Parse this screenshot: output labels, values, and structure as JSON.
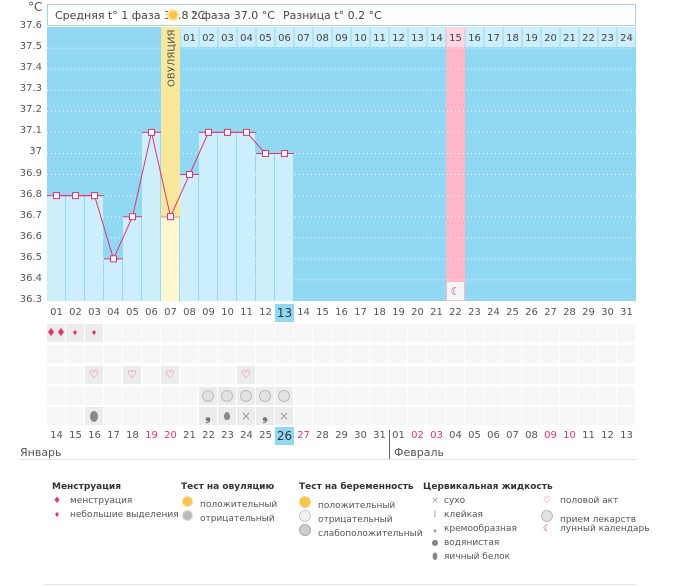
{
  "header": {
    "unit": "°C",
    "phase1_label": "Средняя t° 1 фаза 36.8 °C",
    "phase2_label": "2 фаза 37.0 °C",
    "diff_label": "Разница t° 0.2 °C"
  },
  "chart_data": {
    "type": "line",
    "title": "",
    "xlabel": "",
    "ylabel": "°C",
    "ylim": [
      36.3,
      37.6
    ],
    "yticks": [
      "37.6",
      "37.5",
      "37.4",
      "37.3",
      "37.2",
      "37.1",
      "37",
      "36.9",
      "36.8",
      "36.7",
      "36.6",
      "36.5",
      "36.4",
      "36.3"
    ],
    "grid": true,
    "cycle_days": [
      "01",
      "02",
      "03",
      "04",
      "05",
      "06",
      "07",
      "08",
      "09",
      "10",
      "11",
      "12",
      "13",
      "14",
      "15",
      "16",
      "17",
      "18",
      "19",
      "20",
      "21",
      "22",
      "23",
      "24",
      "25",
      "26",
      "27",
      "28",
      "29",
      "30",
      "31"
    ],
    "dates": [
      "14",
      "15",
      "16",
      "17",
      "18",
      "19",
      "20",
      "21",
      "22",
      "23",
      "24",
      "25",
      "26",
      "27",
      "28",
      "29",
      "30",
      "31",
      "01",
      "02",
      "03",
      "04",
      "05",
      "06",
      "07",
      "08",
      "09",
      "10",
      "11",
      "12",
      "13"
    ],
    "date_red": [
      false,
      false,
      false,
      false,
      false,
      true,
      true,
      false,
      false,
      false,
      false,
      false,
      false,
      true,
      false,
      false,
      false,
      false,
      false,
      true,
      true,
      false,
      false,
      false,
      false,
      false,
      true,
      true,
      false,
      false,
      false
    ],
    "today_index": 12,
    "series": [
      {
        "name": "Базальная температура",
        "values": [
          36.8,
          36.8,
          36.8,
          36.5,
          36.7,
          37.1,
          36.7,
          36.9,
          37.1,
          37.1,
          37.1,
          37.0,
          37.0
        ]
      }
    ],
    "ovulation_index": 6,
    "ovulation_label": "ОВУЛЯЦИЯ",
    "luteal_days": [
      "01",
      "02",
      "03",
      "04",
      "05",
      "06",
      "07",
      "08",
      "09",
      "10",
      "11",
      "12",
      "13",
      "14",
      "15",
      "16",
      "17",
      "18",
      "19",
      "20",
      "21",
      "22",
      "23",
      "24"
    ],
    "luteal_start_index": 7,
    "expected_period_luteal_day": "15",
    "expected_period_index": 21,
    "colors": {
      "plot_bg": "#91d8f2",
      "bar": "#cdeefb",
      "ovulation": "#f9e79b",
      "expected_period": "#ffb6cb",
      "line": "#e8326e",
      "red_date": "#e8326e"
    },
    "months": [
      "Январь",
      "Февраль"
    ]
  },
  "marks": {
    "menstruation": [
      {
        "day": 0,
        "type": "heavy"
      },
      {
        "day": 1,
        "type": "light"
      },
      {
        "day": 2,
        "type": "light"
      }
    ],
    "intercourse_days": [
      2,
      4,
      6,
      10
    ],
    "medication_days": [
      8,
      9,
      10,
      11,
      12
    ],
    "cervical_fluid": [
      {
        "day": 2,
        "type": "egg-white"
      },
      {
        "day": 8,
        "type": "creamy"
      },
      {
        "day": 9,
        "type": "watery"
      },
      {
        "day": 10,
        "type": "dry"
      },
      {
        "day": 11,
        "type": "creamy"
      },
      {
        "day": 12,
        "type": "dry"
      }
    ],
    "moon_day": 21
  },
  "legend": {
    "menstruation": {
      "title": "Менструация",
      "items": [
        "менструация",
        "небольшие выделения"
      ]
    },
    "ovulation_test": {
      "title": "Тест на овуляцию",
      "items": [
        "положительный",
        "отрицательный"
      ]
    },
    "pregnancy_test": {
      "title": "Тест на беременность",
      "items": [
        "положительный",
        "отрицательный",
        "слабоположительный"
      ]
    },
    "cervical": {
      "title": "Цервикальная жидкость",
      "items": [
        "сухо",
        "клейкая",
        "кремообразная",
        "водянистая",
        "яичный белок"
      ]
    },
    "other": {
      "items": [
        "половой акт",
        "прием лекарств",
        "лунный календарь"
      ]
    }
  }
}
